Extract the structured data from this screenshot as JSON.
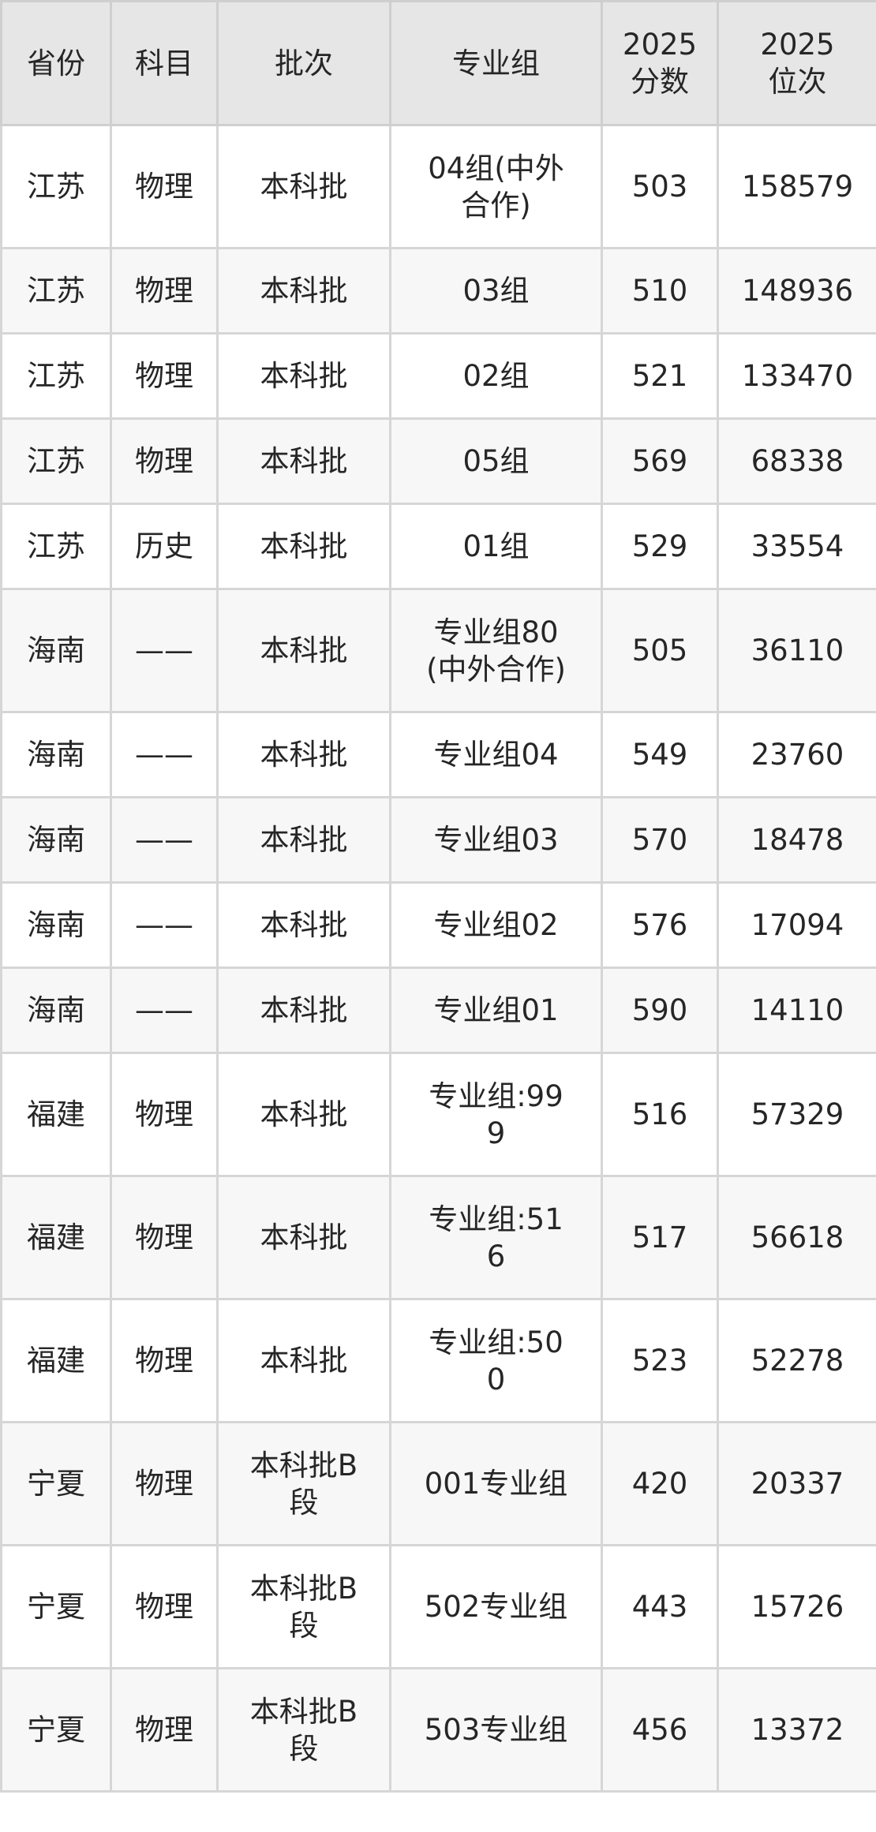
{
  "headers": [
    "省份",
    "科目",
    "批次",
    "专业组",
    "2025分数",
    "2025位次"
  ],
  "rows": [
    [
      "江苏",
      "物理",
      "本科批",
      "04组(中外合作)",
      "503",
      "158579"
    ],
    [
      "江苏",
      "物理",
      "本科批",
      "03组",
      "510",
      "148936"
    ],
    [
      "江苏",
      "物理",
      "本科批",
      "02组",
      "521",
      "133470"
    ],
    [
      "江苏",
      "物理",
      "本科批",
      "05组",
      "569",
      "68338"
    ],
    [
      "江苏",
      "历史",
      "本科批",
      "01组",
      "529",
      "33554"
    ],
    [
      "海南",
      "——",
      "本科批",
      "专业组80(中外合作)",
      "505",
      "36110"
    ],
    [
      "海南",
      "——",
      "本科批",
      "专业组04",
      "549",
      "23760"
    ],
    [
      "海南",
      "——",
      "本科批",
      "专业组03",
      "570",
      "18478"
    ],
    [
      "海南",
      "——",
      "本科批",
      "专业组02",
      "576",
      "17094"
    ],
    [
      "海南",
      "——",
      "本科批",
      "专业组01",
      "590",
      "14110"
    ],
    [
      "福建",
      "物理",
      "本科批",
      "专业组:999",
      "516",
      "57329"
    ],
    [
      "福建",
      "物理",
      "本科批",
      "专业组:516",
      "517",
      "56618"
    ],
    [
      "福建",
      "物理",
      "本科批",
      "专业组:500",
      "523",
      "52278"
    ],
    [
      "宁夏",
      "物理",
      "本科批B段",
      "001专业组",
      "420",
      "20337"
    ],
    [
      "宁夏",
      "物理",
      "本科批B段",
      "502专业组",
      "443",
      "15726"
    ],
    [
      "宁夏",
      "物理",
      "本科批B段",
      "503专业组",
      "456",
      "13372"
    ]
  ]
}
